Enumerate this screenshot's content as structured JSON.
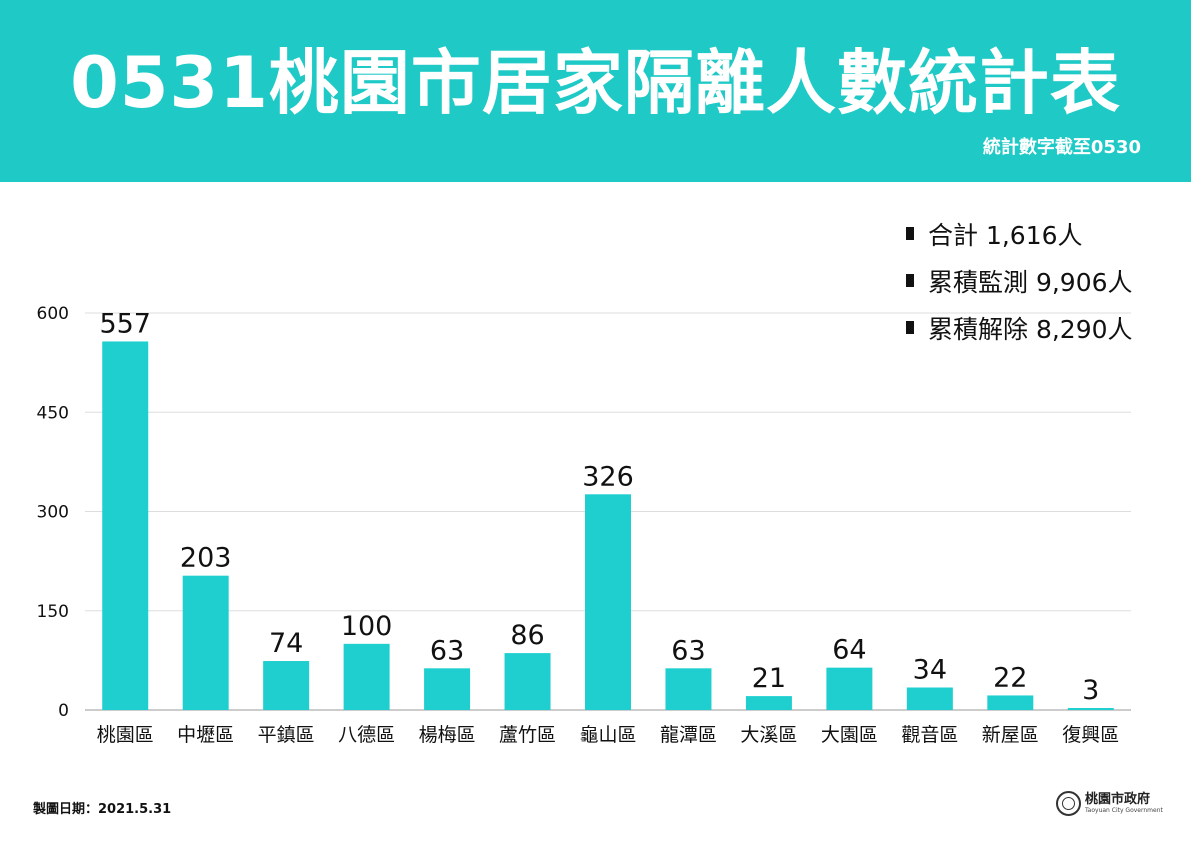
{
  "header": {
    "title": "0531桃園市居家隔離人數統計表",
    "subtitle": "統計數字截至0530",
    "color": "#1fc9c6"
  },
  "legend": {
    "items": [
      "合計 1,616人",
      "累積監測 9,906人",
      "累積解除 8,290人"
    ]
  },
  "footer": {
    "date_text": "製圖日期：2021.5.31",
    "logo_name": "桃園市政府",
    "logo_en": "Taoyuan City Government"
  },
  "chart_data": {
    "type": "bar",
    "categories": [
      "桃園區",
      "中壢區",
      "平鎮區",
      "八德區",
      "楊梅區",
      "蘆竹區",
      "龜山區",
      "龍潭區",
      "大溪區",
      "大園區",
      "觀音區",
      "新屋區",
      "復興區"
    ],
    "values": [
      557,
      203,
      74,
      100,
      63,
      86,
      326,
      63,
      21,
      64,
      34,
      22,
      3
    ],
    "yticks": [
      0,
      150,
      300,
      450,
      600
    ],
    "ylim": [
      0,
      600
    ],
    "grid": true,
    "bar_color": "#1fcfcf",
    "legend_position": "top-right",
    "title": "",
    "xlabel": "",
    "ylabel": ""
  }
}
